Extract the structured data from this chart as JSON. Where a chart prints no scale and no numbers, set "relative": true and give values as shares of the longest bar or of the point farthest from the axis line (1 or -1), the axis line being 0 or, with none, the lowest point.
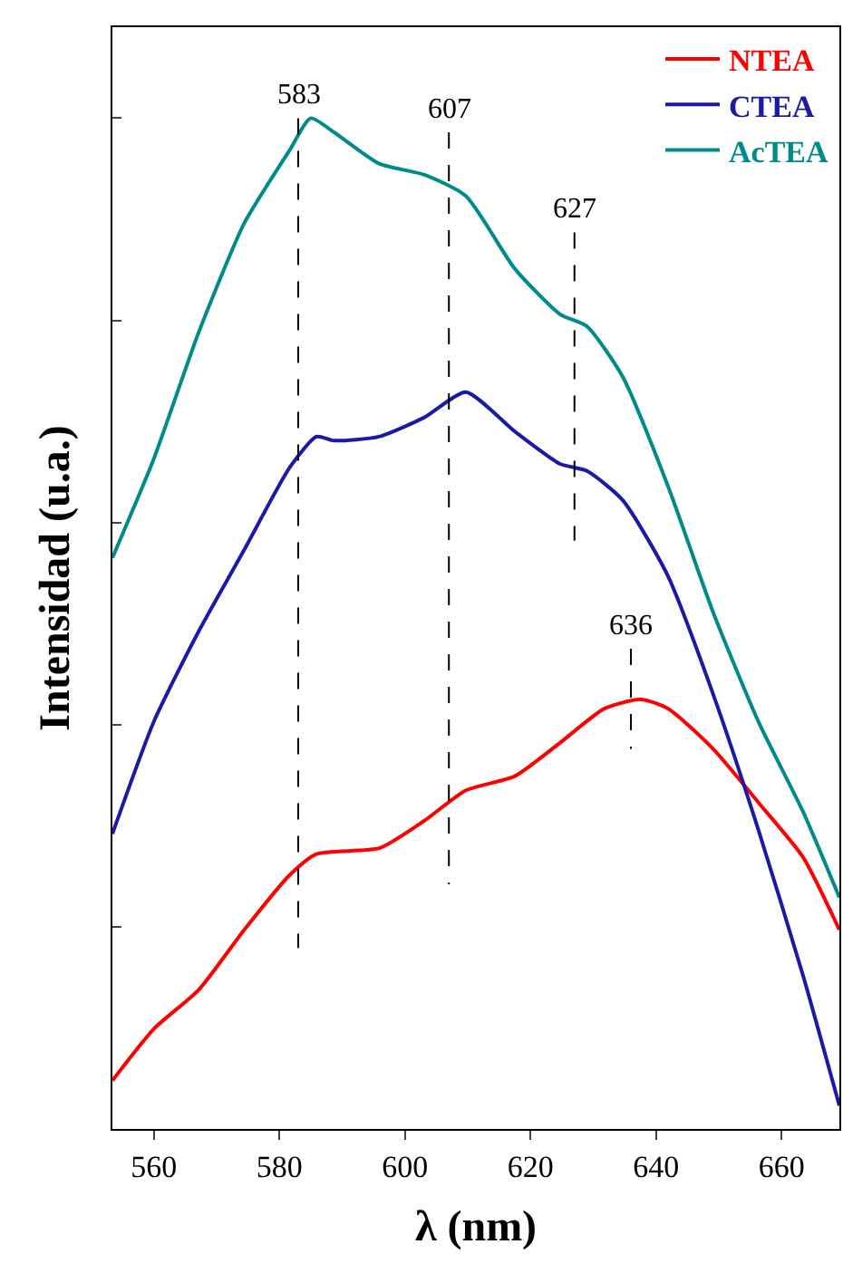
{
  "chart_data": {
    "type": "line",
    "relative": true,
    "xlabel": "λ (nm)",
    "ylabel": "Intensidad (u.a.)",
    "xlim": [
      553.4,
      669.2
    ],
    "xticks": [
      560,
      580,
      600,
      620,
      640,
      660
    ],
    "legend": "top right",
    "tick_labels": "x",
    "series": [
      {
        "name": "NTEA",
        "color": "#ff0000",
        "x": [
          553.4,
          560,
          567.2,
          574.4,
          581.6,
          585.9,
          596,
          603.1,
          609.7,
          617.5,
          624.7,
          631.8,
          637.6,
          641.9,
          649.1,
          656.3,
          663.4,
          669.2
        ],
        "values": [
          0.048,
          0.099,
          0.138,
          0.197,
          0.251,
          0.272,
          0.278,
          0.305,
          0.335,
          0.349,
          0.382,
          0.416,
          0.425,
          0.416,
          0.376,
          0.323,
          0.269,
          0.197
        ]
      },
      {
        "name": "CTEA",
        "color": "#1a1aa6",
        "x": [
          553.4,
          560,
          567.2,
          574.4,
          581.6,
          585.9,
          588.7,
          595.9,
          603.1,
          609.7,
          617.5,
          624.7,
          629,
          634.7,
          641.9,
          649.1,
          656.3,
          663.4,
          669.2
        ],
        "values": [
          0.292,
          0.403,
          0.493,
          0.573,
          0.654,
          0.685,
          0.681,
          0.685,
          0.704,
          0.729,
          0.69,
          0.658,
          0.651,
          0.622,
          0.547,
          0.43,
          0.296,
          0.152,
          0.023
        ]
      },
      {
        "name": "AcTEA",
        "color": "#008b8b",
        "x": [
          553.4,
          560,
          567.2,
          574.4,
          581.6,
          585,
          588.7,
          595.9,
          603.1,
          609.7,
          617.5,
          624.7,
          629,
          634.7,
          641.9,
          649.1,
          656.3,
          663.4,
          669.2
        ],
        "values": [
          0.565,
          0.663,
          0.789,
          0.896,
          0.968,
          1.0,
          0.986,
          0.955,
          0.944,
          0.923,
          0.851,
          0.806,
          0.794,
          0.744,
          0.636,
          0.511,
          0.403,
          0.314,
          0.229
        ]
      },
      {
        "type": "line",
        "color": "#000000",
        "line_style": "dashed",
        "x": [
          583,
          583
        ],
        "values": [
          1.0,
          0.179
        ]
      },
      {
        "type": "line",
        "color": "#000000",
        "line_style": "dashed",
        "x": [
          607,
          607
        ],
        "values": [
          0.986,
          0.242
        ]
      },
      {
        "type": "line",
        "color": "#000000",
        "line_style": "dashed",
        "x": [
          627,
          627
        ],
        "values": [
          0.887,
          0.582
        ]
      },
      {
        "type": "line",
        "color": "#000000",
        "line_style": "dashed",
        "x": [
          636,
          636
        ],
        "values": [
          0.475,
          0.376
        ]
      }
    ],
    "annotations": [
      {
        "text": "583",
        "x": 583,
        "y": 1.0
      },
      {
        "text": "607",
        "x": 607,
        "y": 0.986
      },
      {
        "text": "627",
        "x": 627,
        "y": 0.887
      },
      {
        "text": "636",
        "x": 636,
        "y": 0.475
      }
    ]
  }
}
